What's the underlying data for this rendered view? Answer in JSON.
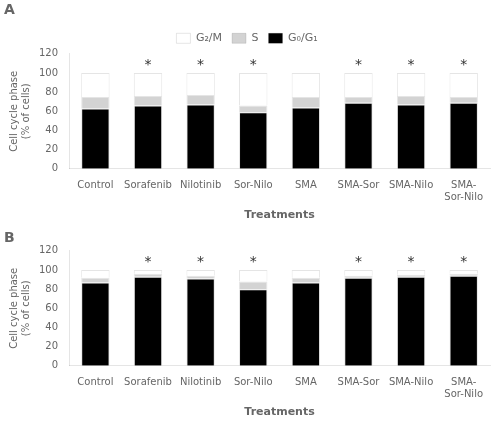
{
  "chart_data": [
    {
      "type": "bar",
      "title": "A",
      "stacked": true,
      "grid": false,
      "legend": "top",
      "categories": [
        "Control",
        "Sorafenib",
        "Nilotinib",
        "Sor-Nilo",
        "SMA",
        "SMA-Sor",
        "SMA-Nilo",
        "SMA-\nSor-Nilo"
      ],
      "series": [
        {
          "name": "G₀/G₁",
          "color": "#000000",
          "values": [
            63,
            66,
            67,
            59,
            64,
            69,
            67,
            69
          ]
        },
        {
          "name": "S",
          "color": "#d3d3d3",
          "values": [
            12,
            10,
            10,
            7,
            11,
            6,
            9,
            6
          ]
        },
        {
          "name": "G₂/M",
          "color": "#ffffff",
          "values": [
            25,
            24,
            23,
            34,
            25,
            25,
            24,
            25
          ]
        }
      ],
      "annotations": [
        {
          "text": "*",
          "category": "Sorafenib"
        },
        {
          "text": "*",
          "category": "Nilotinib"
        },
        {
          "text": "*",
          "category": "Sor-Nilo"
        },
        {
          "text": "*",
          "category": "SMA-Sor"
        },
        {
          "text": "*",
          "category": "SMA-Nilo"
        },
        {
          "text": "*",
          "category": "SMA-\nSor-Nilo"
        }
      ],
      "ylabel": "Cell cycle phase\n(% of cells)",
      "xlabel": "Treatments",
      "ylim": [
        0,
        120
      ],
      "yticks": [
        0,
        20,
        40,
        60,
        80,
        100,
        120
      ]
    },
    {
      "type": "bar",
      "title": "B",
      "stacked": true,
      "grid": false,
      "categories": [
        "Control",
        "Sorafenib",
        "Nilotinib",
        "Sor-Nilo",
        "SMA",
        "SMA-Sor",
        "SMA-Nilo",
        "SMA-\nSor-Nilo"
      ],
      "series": [
        {
          "name": "G₀/G₁",
          "color": "#000000",
          "values": [
            87,
            93,
            91,
            80,
            87,
            92,
            93,
            94
          ]
        },
        {
          "name": "S",
          "color": "#d3d3d3",
          "values": [
            5,
            3,
            3,
            8,
            5,
            2,
            2,
            2
          ]
        },
        {
          "name": "G₂/M",
          "color": "#ffffff",
          "values": [
            8,
            4,
            6,
            12,
            8,
            6,
            5,
            4
          ]
        }
      ],
      "annotations": [
        {
          "text": "*",
          "category": "Sorafenib"
        },
        {
          "text": "*",
          "category": "Nilotinib"
        },
        {
          "text": "*",
          "category": "Sor-Nilo"
        },
        {
          "text": "*",
          "category": "SMA-Sor"
        },
        {
          "text": "*",
          "category": "SMA-Nilo"
        },
        {
          "text": "*",
          "category": "SMA-\nSor-Nilo"
        }
      ],
      "ylabel": "Cell cycle phase\n(% of cells)",
      "xlabel": "Treatments",
      "ylim": [
        0,
        120
      ],
      "yticks": [
        0,
        20,
        40,
        60,
        80,
        100,
        120
      ]
    }
  ]
}
